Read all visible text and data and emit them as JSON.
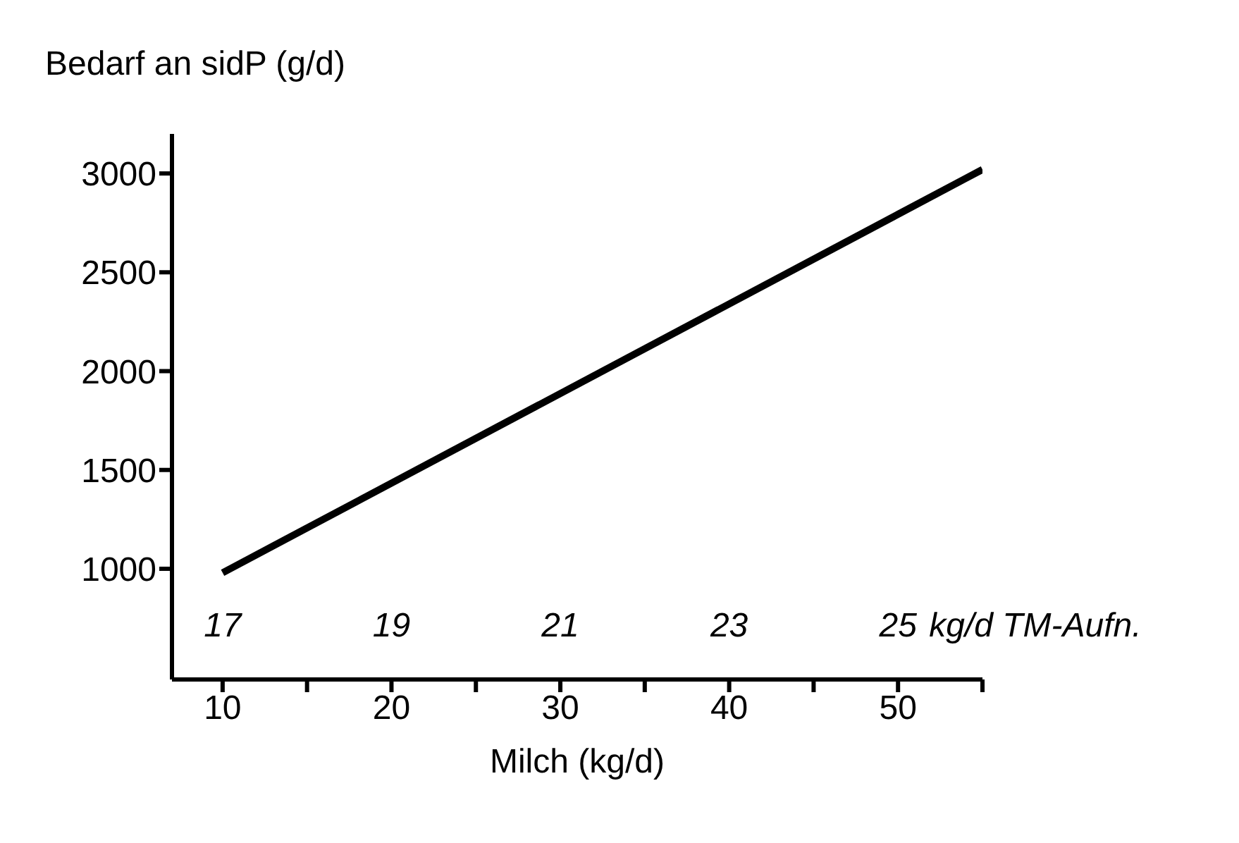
{
  "chart_data": {
    "type": "line",
    "ylabel": "Bedarf an sidP (g/d)",
    "xlabel": "Milch (kg/d)",
    "x2label": "kg/d TM-Aufn.",
    "x": [
      10,
      55
    ],
    "series": [
      {
        "color": "#000000",
        "values": [
          980,
          3020
        ]
      }
    ],
    "xlim": [
      7,
      55
    ],
    "xticks": [
      10,
      {
        "value": 15,
        "label": null
      },
      20,
      {
        "value": 25,
        "label": null
      },
      30,
      {
        "value": 35,
        "label": null
      },
      40,
      {
        "value": 45,
        "label": null
      },
      50,
      {
        "value": 55,
        "label": null
      }
    ],
    "x2lim": [
      16.4,
      26
    ],
    "x2ticks": [
      17,
      19,
      21,
      23,
      25
    ],
    "ylim": [
      440,
      3200
    ],
    "yticks": [
      1000,
      1500,
      2000,
      2500,
      3000
    ],
    "grid": false,
    "legend": false,
    "marker": "none",
    "line_style": "solid"
  }
}
